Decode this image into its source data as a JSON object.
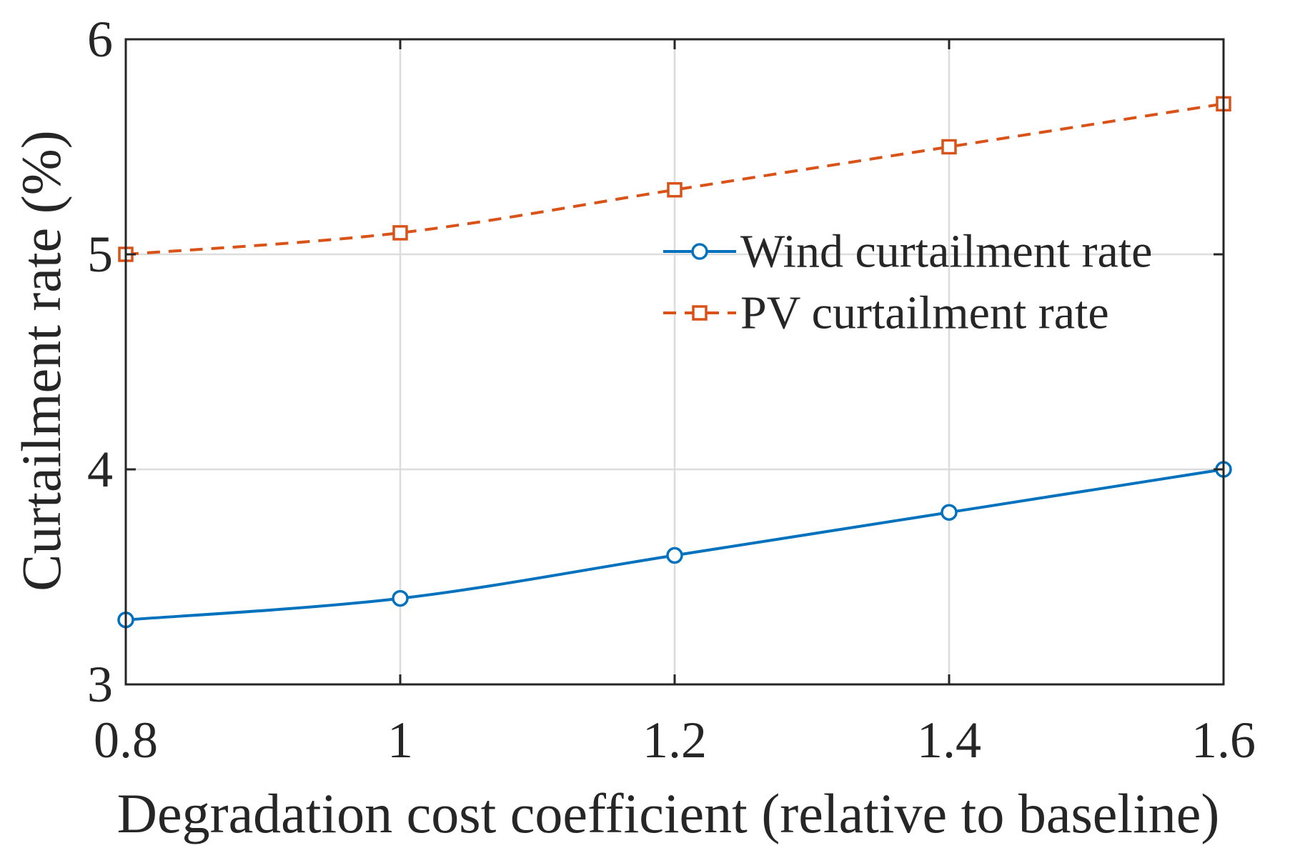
{
  "chart_data": {
    "type": "line",
    "title": "",
    "xlabel": "Degradation cost coefficient (relative to baseline)",
    "ylabel": "Curtailment rate (%)",
    "x": [
      0.8,
      1.0,
      1.2,
      1.4,
      1.6
    ],
    "xlim": [
      0.8,
      1.6
    ],
    "ylim": [
      3,
      6
    ],
    "xticks": [
      0.8,
      1.0,
      1.2,
      1.4,
      1.6
    ],
    "xtick_labels": [
      "0.8",
      "1",
      "1.2",
      "1.4",
      "1.6"
    ],
    "yticks": [
      3,
      4,
      5,
      6
    ],
    "ytick_labels": [
      "3",
      "4",
      "5",
      "6"
    ],
    "grid": true,
    "legend_position": "upper-right",
    "series": [
      {
        "name": "Wind curtailment rate",
        "values": [
          3.3,
          3.4,
          3.6,
          3.8,
          4.0
        ],
        "color": "#0072BD",
        "line_style": "solid",
        "marker": "circle"
      },
      {
        "name": "PV curtailment rate",
        "values": [
          5.0,
          5.1,
          5.3,
          5.5,
          5.7
        ],
        "color": "#D95319",
        "line_style": "dashed",
        "marker": "square"
      }
    ]
  }
}
